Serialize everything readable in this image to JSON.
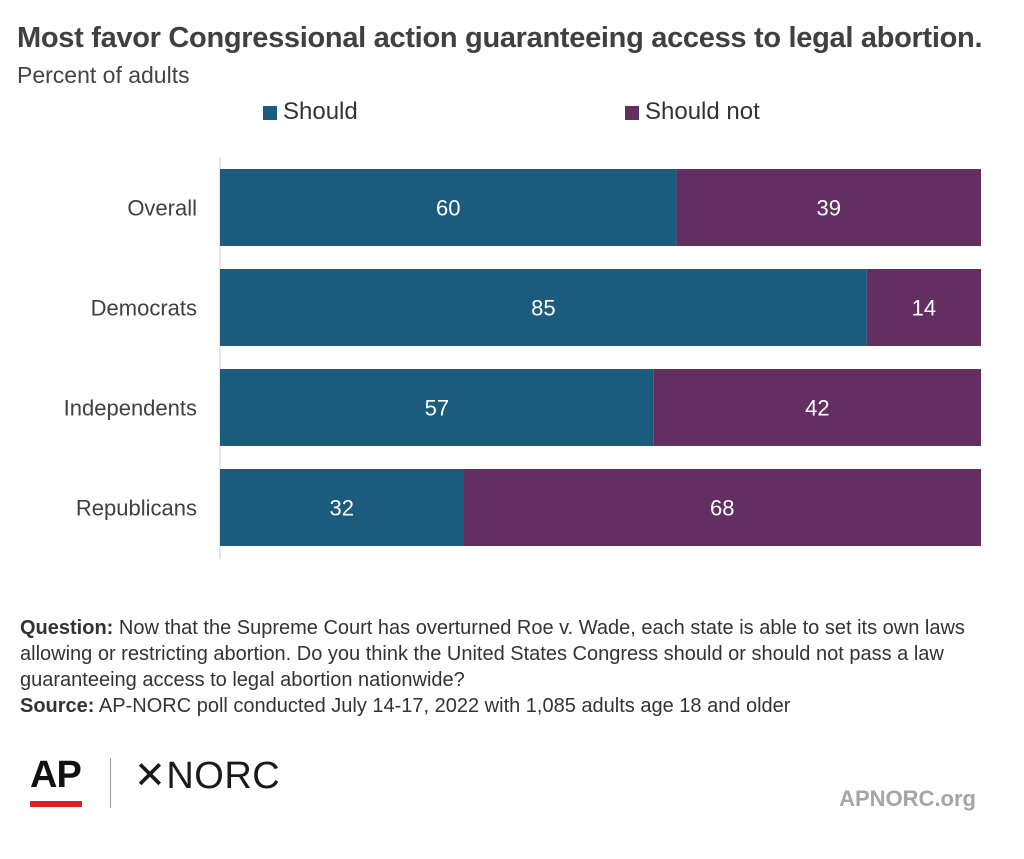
{
  "chart_data": {
    "type": "bar",
    "orientation": "horizontal",
    "stacked": true,
    "title": "Most favor Congressional action guaranteeing access to legal abortion.",
    "subtitle": "Percent of adults",
    "categories": [
      "Overall",
      "Democrats",
      "Independents",
      "Republicans"
    ],
    "series": [
      {
        "name": "Should",
        "values": [
          60,
          85,
          57,
          32
        ],
        "color": "#1b5c7e"
      },
      {
        "name": "Should not",
        "values": [
          39,
          14,
          42,
          68
        ],
        "color": "#632e62"
      }
    ],
    "xlim": [
      0,
      100
    ],
    "legend_position": "top",
    "grid": false
  },
  "footer": {
    "question_label": "Question:",
    "question_text": "Now that the Supreme Court has overturned Roe v. Wade, each state is able to set its own laws allowing or restricting abortion. Do you think the United States Congress should or should not pass a law guaranteeing access to legal abortion nationwide?",
    "source_label": "Source:",
    "source_text": "AP-NORC poll conducted July 14-17, 2022 with 1,085 adults age 18 and older"
  },
  "branding": {
    "ap_logo": "AP",
    "norc_logo": "NORC",
    "norc_mark": "✕",
    "site": "APNORC.org"
  }
}
